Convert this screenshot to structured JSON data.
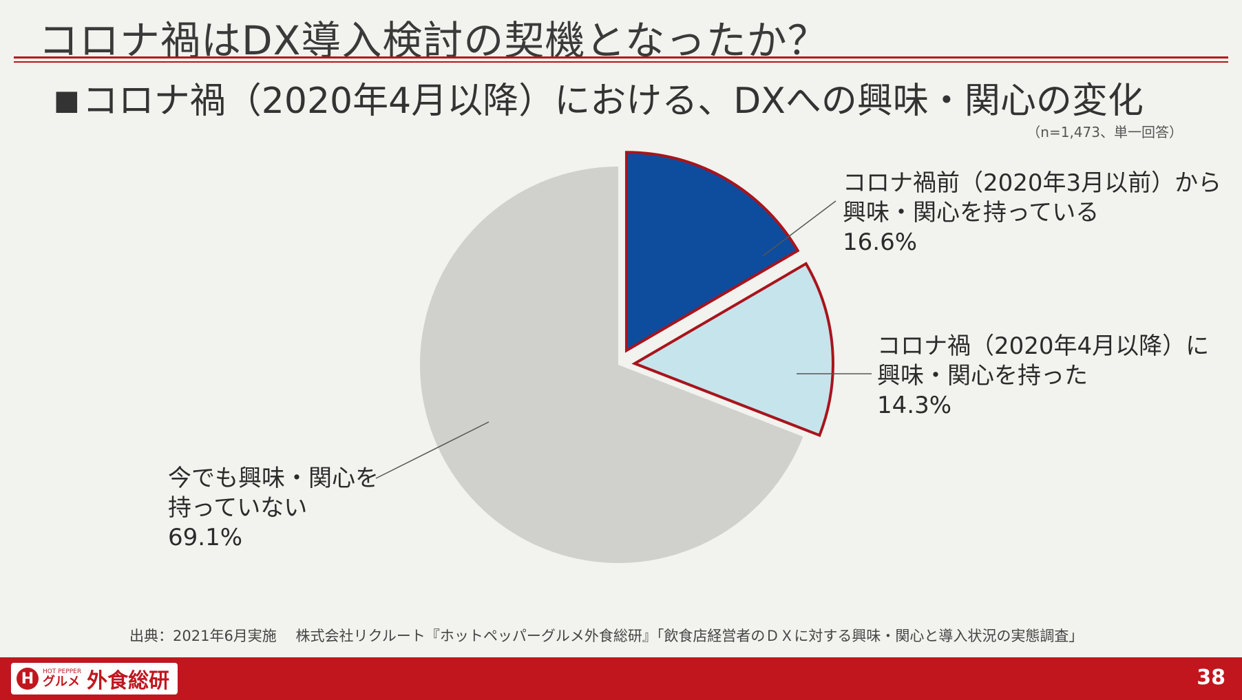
{
  "title": "コロナ禍はDX導入検討の契機となったか？",
  "subtitle": "コロナ禍（2020年4月以降）における、DXへの興味・関心の変化",
  "note": "（n=1,473、単一回答）",
  "chart_data": {
    "type": "pie",
    "slices": [
      {
        "label_lines": [
          "コロナ禍前（2020年3月以前）から",
          "興味・関心を持っている"
        ],
        "value_label": "16.6%",
        "value": 16.6,
        "color": "#0e4c9e",
        "exploded": true
      },
      {
        "label_lines": [
          "コロナ禍（2020年4月以降）に",
          "興味・関心を持った"
        ],
        "value_label": "14.3%",
        "value": 14.3,
        "color": "#c6e4ec",
        "exploded": true
      },
      {
        "label_lines": [
          "今でも興味・関心を",
          "持っていない"
        ],
        "value_label": "69.1%",
        "value": 69.1,
        "color": "#d0d0cd",
        "exploded": false
      }
    ],
    "highlight_outline_color": "#a8141c"
  },
  "source": "出典：2021年6月実施　 株式会社リクルート『ホットペッパーグルメ外食総研』「飲食店経営者のＤＸに対する興味・関心と導入状況の実態調査」",
  "footer": {
    "logo_small": "HOT PEPPER",
    "logo_gourmet": "グルメ",
    "logo_main": "外食総研",
    "page_number": "38"
  }
}
